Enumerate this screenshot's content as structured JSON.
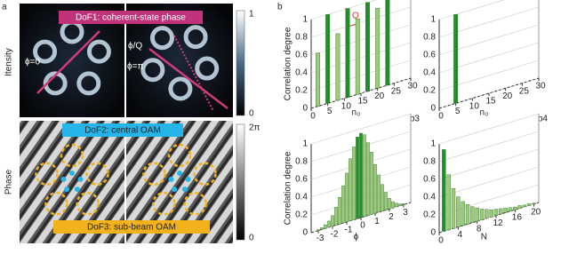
{
  "panel_a": {
    "label": "a",
    "dof1": "DoF1: coherent-state phase",
    "phi0": "ϕ=0",
    "phi_q": "ϕ/Q",
    "phi_pi": "ϕ=π",
    "intensity_label": "Itensity",
    "intensity_max": "1",
    "intensity_min": "0",
    "dof2": "DoF2: central OAM",
    "dof3": "DoF3: sub-beam OAM",
    "phase_label": "Phase",
    "phase_max": "2π",
    "phase_min": "0"
  },
  "panel_b": {
    "label": "b",
    "q_label": "Q"
  },
  "chart_data": [
    {
      "type": "bar3d",
      "panel": "b1",
      "y_label": "Correlation degree",
      "x_label": "n₀",
      "x": [
        2,
        5,
        8,
        11,
        14,
        17,
        20,
        23
      ],
      "values": [
        0.6,
        1,
        0.75,
        1,
        0.85,
        1,
        0.9,
        1
      ],
      "colors": [
        "#9ccc7a",
        "#1f8f2a",
        "#9ccc7a",
        "#1f8f2a",
        "#9ccc7a",
        "#1f8f2a",
        "#9ccc7a",
        "#1f8f2a"
      ],
      "xlim": [
        0,
        30
      ],
      "xticks": [
        0,
        5,
        10,
        15,
        20,
        25,
        30
      ],
      "ylim": [
        0,
        1
      ],
      "yticks": [
        0,
        0.2,
        0.4,
        0.6,
        0.8,
        1
      ],
      "grid": true
    },
    {
      "type": "bar3d",
      "panel": "b2",
      "x_label": "n₀",
      "x": [
        5
      ],
      "values": [
        1
      ],
      "colors": [
        "#1f8f2a"
      ],
      "xlim": [
        0,
        30
      ],
      "xticks": [
        0,
        5,
        10,
        15,
        20,
        25,
        30
      ],
      "ylim": [
        0,
        1
      ],
      "yticks": [
        0,
        0.2,
        0.4,
        0.6,
        0.8,
        1
      ],
      "grid": true
    },
    {
      "type": "bar3d",
      "panel": "b3",
      "y_label": "Correlation degree",
      "x_label": "ϕ",
      "x": [
        -3,
        -2.75,
        -2.5,
        -2.25,
        -2,
        -1.75,
        -1.5,
        -1.25,
        -1,
        -0.75,
        -0.5,
        -0.25,
        0,
        0.25,
        0.5,
        0.75,
        1,
        1.25,
        1.5,
        1.75,
        2,
        2.25,
        2.5,
        2.75,
        3
      ],
      "values": [
        0.01,
        0.02,
        0.04,
        0.07,
        0.12,
        0.2,
        0.3,
        0.42,
        0.55,
        0.7,
        0.82,
        0.92,
        0.95,
        0.92,
        0.82,
        0.7,
        0.55,
        0.42,
        0.3,
        0.2,
        0.12,
        0.07,
        0.04,
        0.02,
        0.01
      ],
      "colors": [
        "#9ccc7a",
        "#9ccc7a",
        "#9ccc7a",
        "#9ccc7a",
        "#9ccc7a",
        "#9ccc7a",
        "#9ccc7a",
        "#9ccc7a",
        "#9ccc7a",
        "#9ccc7a",
        "#9ccc7a",
        "#1f8f2a",
        "#1f8f2a",
        "#9ccc7a",
        "#9ccc7a",
        "#9ccc7a",
        "#9ccc7a",
        "#9ccc7a",
        "#9ccc7a",
        "#9ccc7a",
        "#9ccc7a",
        "#9ccc7a",
        "#9ccc7a",
        "#9ccc7a",
        "#9ccc7a"
      ],
      "xlim": [
        -3.5,
        3.5
      ],
      "xticks": [
        -3,
        -2,
        -1,
        0,
        1,
        2,
        3
      ],
      "ylim": [
        0,
        1
      ],
      "yticks": [
        0,
        0.2,
        0.4,
        0.6,
        0.8,
        1
      ],
      "grid": true
    },
    {
      "type": "bar3d",
      "panel": "b4",
      "x_label": "N",
      "x": [
        1,
        2,
        3,
        4,
        5,
        6,
        7,
        8,
        9,
        10,
        11,
        12,
        13,
        14,
        15,
        16,
        17,
        18,
        19,
        20
      ],
      "values": [
        0.92,
        0.62,
        0.45,
        0.34,
        0.27,
        0.22,
        0.18,
        0.15,
        0.12,
        0.1,
        0.08,
        0.07,
        0.06,
        0.05,
        0.04,
        0.03,
        0.03,
        0.02,
        0.02,
        0.01
      ],
      "colors": [
        "#1f8f2a",
        "#9ccc7a",
        "#9ccc7a",
        "#9ccc7a",
        "#9ccc7a",
        "#9ccc7a",
        "#9ccc7a",
        "#9ccc7a",
        "#9ccc7a",
        "#9ccc7a",
        "#9ccc7a",
        "#9ccc7a",
        "#9ccc7a",
        "#9ccc7a",
        "#9ccc7a",
        "#9ccc7a",
        "#9ccc7a",
        "#9ccc7a",
        "#9ccc7a",
        "#9ccc7a"
      ],
      "xlim": [
        0,
        21
      ],
      "xticks": [
        0,
        4,
        8,
        12,
        16,
        20
      ],
      "ylim": [
        0,
        1
      ],
      "yticks": [
        0,
        0.2,
        0.4,
        0.6,
        0.8,
        1
      ],
      "grid": true
    }
  ]
}
